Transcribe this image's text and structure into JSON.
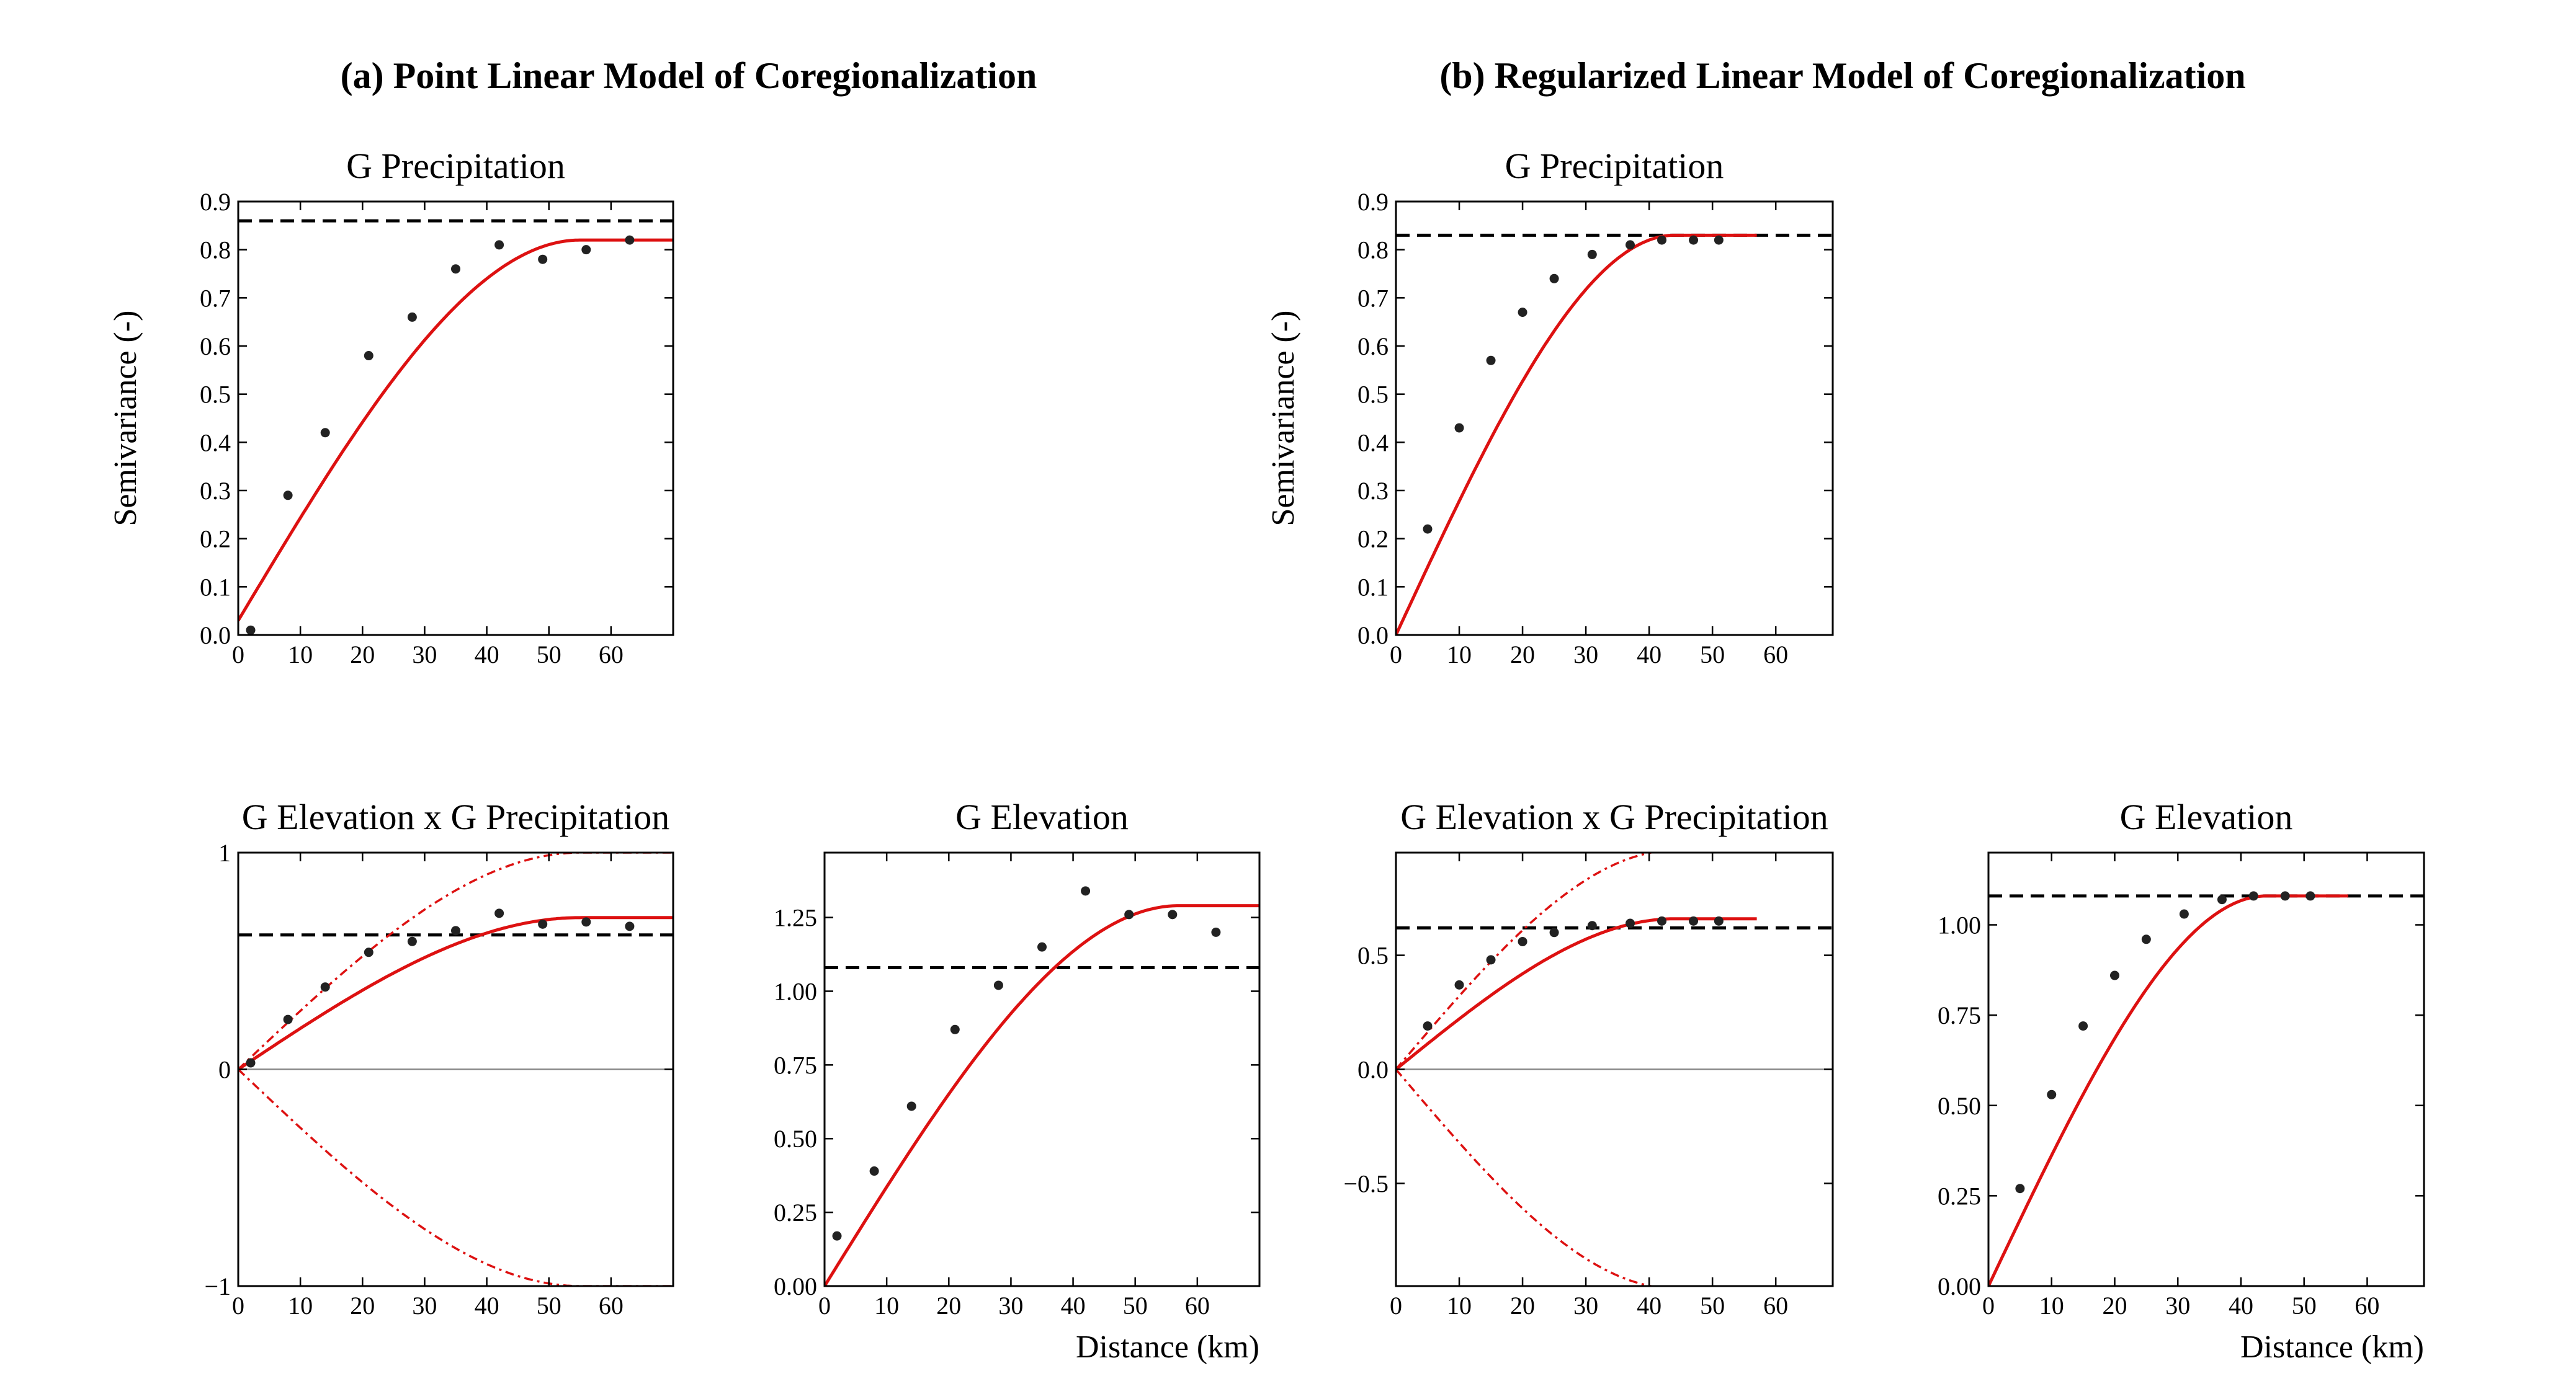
{
  "panel_headings": {
    "a": "(a) Point Linear Model of Coregionalization",
    "b": "(b) Regularized Linear Model of Coregionalization"
  },
  "x_axis_label": "Distance (km)",
  "y_axis_label": "Semivariance (-)",
  "colors": {
    "model": "#dd1111",
    "points": "#222222",
    "sill": "#000000",
    "zero": "#888888"
  },
  "chart_data": [
    {
      "id": "a_precip",
      "type": "scatter",
      "title": "G Precipitation",
      "xlabel": "",
      "ylabel": "Semivariance (-)",
      "xlim": [
        0,
        70
      ],
      "ylim": [
        0,
        0.9
      ],
      "xticks": [
        0,
        10,
        20,
        30,
        40,
        50,
        60
      ],
      "yticks": [
        0,
        0.1,
        0.2,
        0.3,
        0.4,
        0.5,
        0.6,
        0.7,
        0.8,
        0.9
      ],
      "ytick_labels": [
        "0.0",
        "0.1",
        "0.2",
        "0.3",
        "0.4",
        "0.5",
        "0.6",
        "0.7",
        "0.8",
        "0.9"
      ],
      "points": {
        "x": [
          2,
          8,
          14,
          21,
          28,
          35,
          42,
          49,
          56,
          63
        ],
        "y": [
          0.01,
          0.29,
          0.42,
          0.58,
          0.66,
          0.76,
          0.81,
          0.78,
          0.8,
          0.82
        ]
      },
      "model": {
        "nugget": 0.03,
        "sill": 0.82,
        "range": 55,
        "xmax": 70
      },
      "sill_line": 0.86
    },
    {
      "id": "a_cross",
      "type": "scatter",
      "title": "G Elevation x G Precipitation",
      "xlabel": "",
      "ylabel": "",
      "xlim": [
        0,
        70
      ],
      "ylim": [
        -1,
        1
      ],
      "xticks": [
        0,
        10,
        20,
        30,
        40,
        50,
        60
      ],
      "yticks": [
        -1,
        0,
        1
      ],
      "ytick_labels": [
        "−1",
        "0",
        "1"
      ],
      "points": {
        "x": [
          2,
          8,
          14,
          21,
          28,
          35,
          42,
          49,
          56,
          63
        ],
        "y": [
          0.03,
          0.23,
          0.38,
          0.54,
          0.59,
          0.64,
          0.72,
          0.67,
          0.68,
          0.66
        ]
      },
      "model": {
        "nugget": 0,
        "sill": 0.7,
        "range": 55,
        "xmax": 70
      },
      "envelope": {
        "sill": 1.0,
        "range": 55
      },
      "sill_line": 0.62,
      "zero_line": true
    },
    {
      "id": "a_elev",
      "type": "scatter",
      "title": "G Elevation",
      "xlabel": "Distance (km)",
      "ylabel": "",
      "xlim": [
        0,
        70
      ],
      "ylim": [
        0,
        1.47
      ],
      "xticks": [
        0,
        10,
        20,
        30,
        40,
        50,
        60
      ],
      "yticks": [
        0,
        0.25,
        0.5,
        0.75,
        1.0,
        1.25
      ],
      "ytick_labels": [
        "0.00",
        "0.25",
        "0.50",
        "0.75",
        "1.00",
        "1.25"
      ],
      "points": {
        "x": [
          2,
          8,
          14,
          21,
          28,
          35,
          42,
          49,
          56,
          63
        ],
        "y": [
          0.17,
          0.39,
          0.61,
          0.87,
          1.02,
          1.15,
          1.34,
          1.26,
          1.26,
          1.2
        ]
      },
      "model": {
        "nugget": 0,
        "sill": 1.29,
        "range": 57,
        "xmax": 70
      },
      "sill_line": 1.08
    },
    {
      "id": "b_precip",
      "type": "scatter",
      "title": "G Precipitation",
      "xlabel": "",
      "ylabel": "Semivariance (-)",
      "xlim": [
        0,
        69
      ],
      "ylim": [
        0,
        0.9
      ],
      "xticks": [
        0,
        10,
        20,
        30,
        40,
        50,
        60
      ],
      "yticks": [
        0,
        0.1,
        0.2,
        0.3,
        0.4,
        0.5,
        0.6,
        0.7,
        0.8,
        0.9
      ],
      "ytick_labels": [
        "0.0",
        "0.1",
        "0.2",
        "0.3",
        "0.4",
        "0.5",
        "0.6",
        "0.7",
        "0.8",
        "0.9"
      ],
      "points": {
        "x": [
          5,
          10,
          15,
          20,
          25,
          31,
          37,
          42,
          47,
          51
        ],
        "y": [
          0.22,
          0.43,
          0.57,
          0.67,
          0.74,
          0.79,
          0.81,
          0.82,
          0.82,
          0.82
        ]
      },
      "model": {
        "nugget": 0,
        "sill": 0.83,
        "range": 44,
        "xmax": 57
      },
      "sill_line": 0.83
    },
    {
      "id": "b_cross",
      "type": "scatter",
      "title": "G Elevation x G Precipitation",
      "xlabel": "",
      "ylabel": "",
      "xlim": [
        0,
        69
      ],
      "ylim": [
        -0.95,
        0.95
      ],
      "xticks": [
        0,
        10,
        20,
        30,
        40,
        50,
        60
      ],
      "yticks": [
        -0.5,
        0,
        0.5
      ],
      "ytick_labels": [
        "−0.5",
        "0.0",
        "0.5"
      ],
      "points": {
        "x": [
          5,
          10,
          15,
          20,
          25,
          31,
          37,
          42,
          47,
          51
        ],
        "y": [
          0.19,
          0.37,
          0.48,
          0.56,
          0.6,
          0.63,
          0.64,
          0.65,
          0.65,
          0.65
        ]
      },
      "model": {
        "nugget": 0,
        "sill": 0.66,
        "range": 44,
        "xmax": 57
      },
      "envelope": {
        "sill": 0.96,
        "range": 44
      },
      "sill_line": 0.62,
      "zero_line": true
    },
    {
      "id": "b_elev",
      "type": "scatter",
      "title": "G Elevation",
      "xlabel": "Distance (km)",
      "ylabel": "",
      "xlim": [
        0,
        69
      ],
      "ylim": [
        0,
        1.2
      ],
      "xticks": [
        0,
        10,
        20,
        30,
        40,
        50,
        60
      ],
      "yticks": [
        0,
        0.25,
        0.5,
        0.75,
        1.0
      ],
      "ytick_labels": [
        "0.00",
        "0.25",
        "0.50",
        "0.75",
        "1.00"
      ],
      "points": {
        "x": [
          5,
          10,
          15,
          20,
          25,
          31,
          37,
          42,
          47,
          51
        ],
        "y": [
          0.27,
          0.53,
          0.72,
          0.86,
          0.96,
          1.03,
          1.07,
          1.08,
          1.08,
          1.08
        ]
      },
      "model": {
        "nugget": 0,
        "sill": 1.08,
        "range": 44,
        "xmax": 57
      },
      "sill_line": 1.08
    }
  ]
}
